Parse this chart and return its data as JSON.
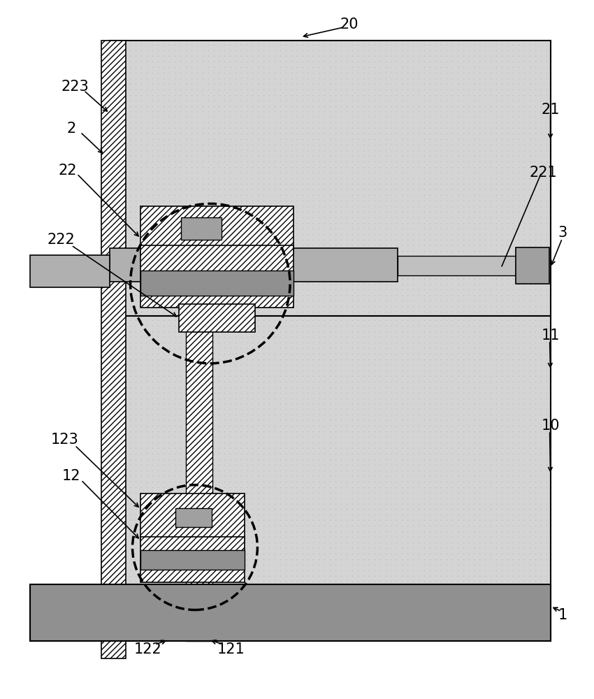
{
  "fig_width": 8.5,
  "fig_height": 10.0,
  "dpi": 100,
  "bg_color": "#ffffff",
  "stipple_color": "#c8c8c8",
  "hatch_color": "#000000",
  "gray_dark": "#808080",
  "gray_med": "#a8a8a8",
  "gray_light": "#d0d0d0",
  "panel_bg": "#d2d2d2"
}
